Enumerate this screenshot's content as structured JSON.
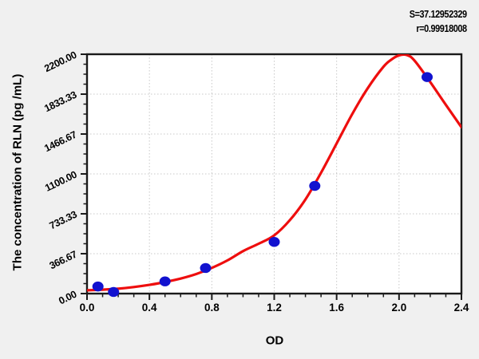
{
  "page": {
    "background": "#f0f0f0",
    "plot_background": "#ffffff"
  },
  "stats": {
    "s_label": "S=37.12952329",
    "r_label": "r=0.99918008"
  },
  "chart_data": {
    "type": "scatter",
    "title": "",
    "xlabel": "OD",
    "ylabel": "The concentration of RLN (pg /mL)",
    "xlim": [
      0,
      2.4
    ],
    "ylim": [
      0,
      2200
    ],
    "grid": "dotted at major ticks",
    "legend": "none",
    "x_major_ticks": [
      0.0,
      0.4,
      0.8,
      1.2,
      1.6,
      2.0,
      2.4
    ],
    "x_tick_labels": [
      "0.0",
      "0.4",
      "0.8",
      "1.2",
      "1.6",
      "2.0",
      "2.4"
    ],
    "x_minor_step": 0.1,
    "y_major_ticks": [
      0,
      366.67,
      733.33,
      1100,
      1466.67,
      1833.33,
      2200
    ],
    "y_tick_labels": [
      "0.00",
      "366.67",
      "733.33",
      "1100.00",
      "1466.67",
      "1833.33",
      "2200.00"
    ],
    "y_minor_step": 91.6675,
    "colors": {
      "curve": "#ee0e0e",
      "points": "#1212cf",
      "axis": "#1a1a1a",
      "grid": "#c8c8c8"
    },
    "series": [
      {
        "name": "fitted-curve",
        "type": "line",
        "points": [
          [
            0.0,
            30
          ],
          [
            0.1,
            36
          ],
          [
            0.2,
            45
          ],
          [
            0.3,
            60
          ],
          [
            0.4,
            80
          ],
          [
            0.5,
            106
          ],
          [
            0.6,
            138
          ],
          [
            0.7,
            180
          ],
          [
            0.8,
            236
          ],
          [
            0.9,
            305
          ],
          [
            1.0,
            390
          ],
          [
            1.1,
            458
          ],
          [
            1.2,
            535
          ],
          [
            1.3,
            675
          ],
          [
            1.4,
            865
          ],
          [
            1.5,
            1110
          ],
          [
            1.6,
            1380
          ],
          [
            1.7,
            1650
          ],
          [
            1.8,
            1890
          ],
          [
            1.9,
            2085
          ],
          [
            1.95,
            2150
          ],
          [
            2.0,
            2190
          ],
          [
            2.05,
            2193
          ],
          [
            2.1,
            2140
          ],
          [
            2.2,
            1945
          ],
          [
            2.3,
            1735
          ],
          [
            2.4,
            1530
          ]
        ]
      },
      {
        "name": "standard-points",
        "type": "scatter",
        "points": [
          [
            0.07,
            65
          ],
          [
            0.17,
            15
          ],
          [
            0.5,
            112
          ],
          [
            0.76,
            235
          ],
          [
            1.2,
            475
          ],
          [
            1.46,
            990
          ],
          [
            2.18,
            1990
          ]
        ]
      }
    ],
    "stats": {
      "S": "37.12952329",
      "r": "0.99918008"
    }
  }
}
